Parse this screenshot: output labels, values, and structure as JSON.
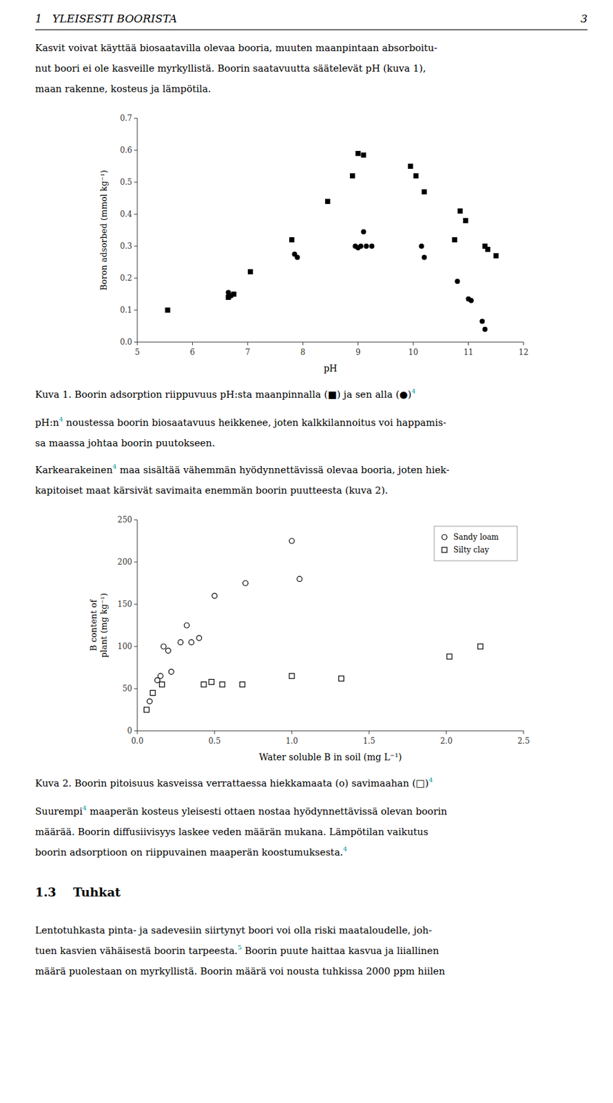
{
  "page": {
    "header": "1   YLEISESTI BOORISTA",
    "page_number": "3",
    "link_color": "#009999",
    "content": [
      {
        "kind": "paragraph",
        "lines": [
          [
            {
              "text": "Kasvit voivat käyttää biosaatavilla olevaa booria, muuten maanpintaan absorboitu-"
            }
          ],
          [
            {
              "text": "nut boori ei ole kasveille myrkyllistä. Boorin saatavuutta säätelevät pH (kuva 1),"
            }
          ],
          [
            {
              "text": "maan rakenne, kosteus ja lämpötila."
            }
          ]
        ]
      },
      {
        "kind": "chart"
      },
      {
        "kind": "caption",
        "lines": [
          [
            {
              "text": "Kuva 1. Boorin adsorption riippuvuus pH:sta maanpinnalla (■) ja sen alla (●)"
            },
            {
              "sup": "4"
            }
          ]
        ]
      },
      {
        "kind": "paragraph",
        "lines": [
          [
            {
              "text": "pH:n"
            },
            {
              "sup": "4"
            },
            {
              "text": " noustessa boorin biosaatavuus heikkenee, joten kalkkilannoitus voi happamis-"
            }
          ],
          [
            {
              "text": "sa maassa johtaa boorin puutokseen."
            }
          ]
        ]
      },
      {
        "kind": "paragraph",
        "lines": [
          [
            {
              "text": "Karkearakeinen"
            },
            {
              "sup": "4"
            },
            {
              "text": " maa sisältää vähemmän hyödynnettävissä olevaa booria, joten hiek-"
            }
          ],
          [
            {
              "text": "kapitoiset maat kärsivät savimaita enemmän boorin puutteesta (kuva 2)."
            }
          ]
        ]
      },
      {
        "kind": "chart"
      },
      {
        "kind": "caption",
        "lines": [
          [
            {
              "text": "Kuva 2. Boorin pitoisuus kasveissa verrattaessa hiekkamaata (o) savimaahan (□)"
            },
            {
              "sup": "4"
            }
          ]
        ]
      },
      {
        "kind": "paragraph",
        "lines": [
          [
            {
              "text": "Suurempi"
            },
            {
              "sup": "4"
            },
            {
              "text": " maaperän kosteus yleisesti ottaen nostaa hyödynnettävissä olevan boorin"
            }
          ],
          [
            {
              "text": "määrää. Boorin diffusiivisyys laskee veden määrän mukana. Lämpötilan vaikutus"
            }
          ],
          [
            {
              "text": "boorin adsorptioon on riippuvainen maaperän koostumuksesta."
            },
            {
              "sup": "4"
            }
          ]
        ]
      },
      {
        "kind": "heading",
        "lines": [
          [
            {
              "text": "1.3    Tuhkat"
            }
          ]
        ]
      },
      {
        "kind": "paragraph",
        "lines": [
          [
            {
              "text": "Lentotuhkasta pinta- ja sadevesiin siirtynyt boori voi olla riski maataloudelle, joh-"
            }
          ],
          [
            {
              "text": "tuen kasvien vähäisestä boorin tarpeesta."
            },
            {
              "sup": "5"
            },
            {
              "text": " Boorin puute haittaa kasvua ja liiallinen"
            }
          ],
          [
            {
              "text": "määrä puolestaan on myrkyllistä. Boorin määrä voi nousta tuhkissa 2000 ppm hiilen"
            }
          ]
        ]
      }
    ]
  },
  "chart_data": [
    {
      "type": "scatter",
      "x_label": "pH",
      "y_label": "Boron adsorbed (mmol kg⁻¹)",
      "xlim": [
        5,
        12
      ],
      "ylim": [
        0,
        0.7
      ],
      "xticks": [
        5,
        6,
        7,
        8,
        9,
        10,
        11,
        12
      ],
      "yticks": [
        {
          "value": 0,
          "label": "0.0"
        },
        0.1,
        0.2,
        0.3,
        0.4,
        0.5,
        0.6,
        0.7
      ],
      "grid": false,
      "series": [
        {
          "marker": "square",
          "color": "#000000",
          "x": [
            5.55,
            6.65,
            6.75,
            7.05,
            7.8,
            8.45,
            8.9,
            9.0,
            9.1,
            9.95,
            10.05,
            10.2,
            10.85,
            10.95,
            10.75,
            11.3,
            11.35,
            11.5
          ],
          "values": [
            0.1,
            0.14,
            0.15,
            0.22,
            0.32,
            0.44,
            0.52,
            0.59,
            0.585,
            0.55,
            0.52,
            0.47,
            0.41,
            0.38,
            0.32,
            0.3,
            0.29,
            0.27
          ]
        },
        {
          "marker": "circle",
          "color": "#000000",
          "x": [
            6.65,
            6.7,
            7.85,
            7.9,
            8.95,
            9.0,
            9.05,
            9.1,
            9.15,
            9.25,
            10.15,
            10.2,
            10.8,
            11.0,
            11.05,
            11.25,
            11.3
          ],
          "values": [
            0.155,
            0.145,
            0.275,
            0.265,
            0.3,
            0.295,
            0.3,
            0.345,
            0.3,
            0.3,
            0.3,
            0.265,
            0.19,
            0.135,
            0.13,
            0.065,
            0.04
          ]
        }
      ]
    },
    {
      "type": "scatter",
      "x_label": "Water soluble B in soil (mg L⁻¹)",
      "y_label": "B content of\nplant (mg kg⁻¹)",
      "xlim": [
        0,
        2.5
      ],
      "ylim": [
        0,
        250
      ],
      "xticks": [
        {
          "value": 0,
          "label": "0.0"
        },
        0.5,
        {
          "value": 1.0,
          "label": "1.0"
        },
        1.5,
        {
          "value": 2.0,
          "label": "2.0"
        },
        2.5
      ],
      "yticks": [
        0,
        50,
        100,
        150,
        200,
        250
      ],
      "grid": false,
      "legend": "upper-right",
      "series": [
        {
          "name": "Sandy loam",
          "marker": "open-circle",
          "color": "#000000",
          "x": [
            0.08,
            0.13,
            0.15,
            0.17,
            0.2,
            0.22,
            0.28,
            0.32,
            0.35,
            0.4,
            0.5,
            0.7,
            1.0,
            1.05
          ],
          "values": [
            35,
            60,
            65,
            100,
            95,
            70,
            105,
            125,
            105,
            110,
            160,
            175,
            225,
            180
          ]
        },
        {
          "name": "Silty clay",
          "marker": "open-square",
          "color": "#000000",
          "x": [
            0.06,
            0.1,
            0.16,
            0.43,
            0.48,
            0.55,
            0.68,
            1.0,
            1.32,
            2.02,
            2.22
          ],
          "values": [
            25,
            45,
            55,
            55,
            58,
            55,
            55,
            65,
            62,
            88,
            100
          ]
        }
      ]
    }
  ]
}
